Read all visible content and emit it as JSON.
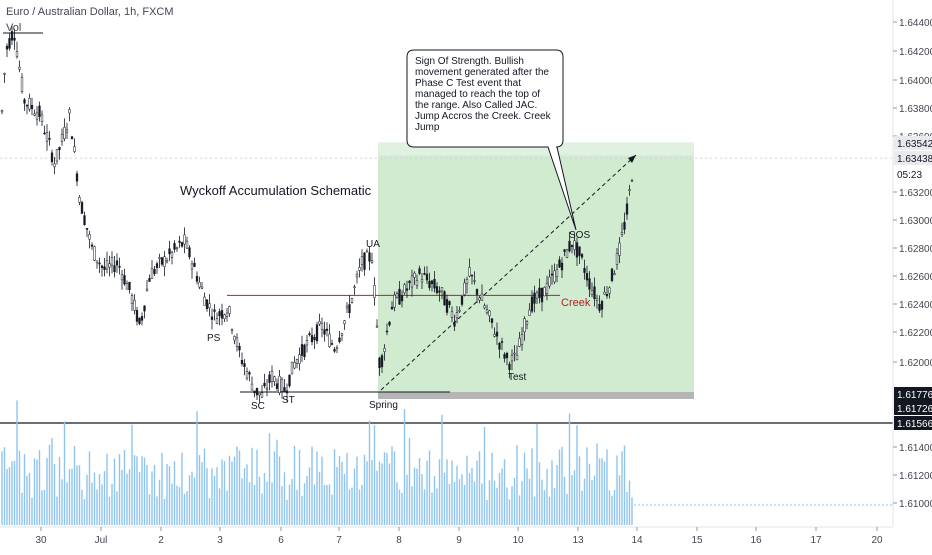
{
  "header": {
    "symbol_title": "Euro / Australian Dollar, 1h, FXCM",
    "volume_label": "Vol"
  },
  "chart_data": {
    "type": "candlestick",
    "annotation_title": "Wyckoff Accumulation Schematic",
    "callout_text": "Sign Of Strength. Bullish movement generated after the Phase C Test event that managed to reach the top of the range. Also Called JAC. Jump Accros the Creek. Creek Jump",
    "event_labels": [
      {
        "label": "PS",
        "date_index": 7.2,
        "price": 1.6223
      },
      {
        "label": "SC",
        "date_index": 7.8,
        "price": 1.6162
      },
      {
        "label": "ST",
        "date_index": 8.1,
        "price": 1.6166
      },
      {
        "label": "UA",
        "date_index": 9.2,
        "price": 1.6292
      },
      {
        "label": "Spring",
        "date_index": 9.3,
        "price": 1.6162
      },
      {
        "label": "Test",
        "date_index": 10.95,
        "price": 1.6186
      },
      {
        "label": "SOS",
        "date_index": 11.95,
        "price": 1.6296
      },
      {
        "label": "Creek",
        "date_index": 11.9,
        "price": 1.6244
      }
    ],
    "creek_level": 1.6247,
    "range_box": {
      "price_low": 1.6174,
      "price_high": 1.6355
    },
    "y_axis": {
      "ticks": [
        "1.64400",
        "1.64200",
        "1.64000",
        "1.63800",
        "1.63600",
        "1.63200",
        "1.63000",
        "1.62800",
        "1.62600",
        "1.62400",
        "1.62200",
        "1.62000",
        "1.61400",
        "1.61200",
        "1.61000"
      ],
      "badges": [
        {
          "text": "1.63542",
          "style": "light"
        },
        {
          "text": "1.63438",
          "style": "light"
        },
        {
          "text": "05:23",
          "style": "plain"
        },
        {
          "text": "1.61776",
          "style": "dark"
        },
        {
          "text": "1.61726",
          "style": "dark"
        },
        {
          "text": "1.61566",
          "style": "dark"
        }
      ]
    },
    "x_axis": {
      "ticks": [
        "30",
        "Jul",
        "2",
        "3",
        "6",
        "7",
        "8",
        "9",
        "10",
        "13",
        "14",
        "15",
        "16",
        "17",
        "20"
      ]
    },
    "last_price": 1.63438,
    "colors": {
      "candle": "#131722",
      "volume": "#90c4f0",
      "box_fill": "#d0ebd0",
      "creek_line": "#b22222",
      "creek_text": "#b22222",
      "grid_dashed": "#d0d3db",
      "accent_badge": "#e9eaee"
    }
  }
}
